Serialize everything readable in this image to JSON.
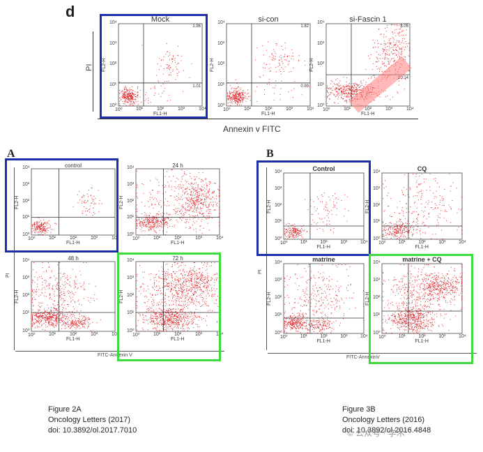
{
  "panel_labels": {
    "d": "d",
    "a": "A",
    "b": "B"
  },
  "top": {
    "y_axis_label": "PI",
    "x_axis_label": "Annexin v FITC",
    "plots": [
      {
        "title": "Mock",
        "ur": "1.96",
        "lr": "1.01",
        "xlabel": "FL1-H",
        "ylabel": "FL2-H"
      },
      {
        "title": "si-con",
        "ur": "1.82",
        "lr": "0.99",
        "xlabel": "FL1-H",
        "ylabel": "FL2-H"
      },
      {
        "title": "si-Fascin 1",
        "ur": "8.05",
        "lr": "10.14",
        "xlabel": "FL1-H",
        "ylabel": "FL2-H"
      }
    ]
  },
  "fig_a": {
    "y_axis_label": "PI",
    "x_axis_label": "FITC-Annexin V",
    "plots": [
      {
        "title": "control",
        "xlabel": "FL1-H",
        "ylabel": "FL2-H"
      },
      {
        "title": "24 h",
        "xlabel": "FL1-H",
        "ylabel": "FL2-H"
      },
      {
        "title": "48 h",
        "xlabel": "FL1-H",
        "ylabel": "FL2-H"
      },
      {
        "title": "72 h",
        "xlabel": "FL1-H",
        "ylabel": "FL2-H"
      }
    ]
  },
  "fig_b": {
    "y_axis_label": "PI",
    "x_axis_label": "FITC-AnnexinV",
    "plots": [
      {
        "title": "Control",
        "xlabel": "FL1-H",
        "ylabel": "FL2-H"
      },
      {
        "title": "CQ",
        "xlabel": "FL1-H",
        "ylabel": "FL2-H"
      },
      {
        "title": "matrine",
        "xlabel": "FL1-H",
        "ylabel": "FL2-H"
      },
      {
        "title": "matrine + CQ",
        "xlabel": "FL1-H",
        "ylabel": "FL2-H"
      }
    ]
  },
  "ticks": {
    "x": [
      "10⁰",
      "10¹",
      "10²",
      "10³",
      "10⁴"
    ],
    "y": [
      "10⁴",
      "10³",
      "10²",
      "10¹",
      "10⁰"
    ]
  },
  "captions": {
    "left": {
      "line1": "Figure 2A",
      "line2": "Oncology Letters (2017)",
      "line3": "doi: 10.3892/ol.2017.7010"
    },
    "right": {
      "line1": "Figure 3B",
      "line2": "Oncology Letters (2016)",
      "line3": "doi: 10.3892/ol.2016.4848"
    }
  },
  "watermark": "© 公众号 · 学术",
  "colors": {
    "dots": "#e0262a",
    "blue_box": "#1b2fa8",
    "green_box": "#3ddb3d",
    "highlight": "#ff7070"
  }
}
